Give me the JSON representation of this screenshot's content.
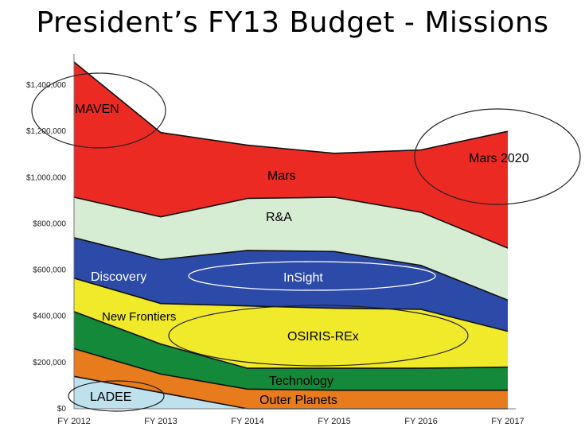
{
  "title": "President’s FY13 Budget - Missions",
  "chart_data": {
    "type": "area",
    "stacked": true,
    "categories": [
      "FY 2012",
      "FY 2013",
      "FY 2014",
      "FY 2015",
      "FY 2016",
      "FY 2017"
    ],
    "ylim": [
      0,
      1500000
    ],
    "yticks": [
      0,
      200000,
      400000,
      600000,
      800000,
      1000000,
      1200000,
      1400000
    ],
    "ytick_labels": [
      "$0",
      "$200,000",
      "$400,000",
      "$600,000",
      "$800,000",
      "$1,000,000",
      "$1,200,000",
      "$1,400,000"
    ],
    "series": [
      {
        "name": "LADEE",
        "color": "#bfe1ee",
        "values": [
          140000,
          70000,
          0,
          0,
          0,
          0
        ]
      },
      {
        "name": "Outer Planets",
        "color": "#e87b1c",
        "values": [
          120000,
          80000,
          85000,
          80000,
          80000,
          80000
        ]
      },
      {
        "name": "Technology",
        "color": "#14893a",
        "values": [
          160000,
          130000,
          90000,
          95000,
          95000,
          100000
        ]
      },
      {
        "name": "New Frontiers",
        "color": "#f0ea2a",
        "values": [
          145000,
          175000,
          270000,
          260000,
          255000,
          155000
        ]
      },
      {
        "name": "Discovery",
        "color": "#2c4aa8",
        "values": [
          175000,
          190000,
          240000,
          245000,
          190000,
          135000
        ]
      },
      {
        "name": "R&A",
        "color": "#d6ecd3",
        "values": [
          175000,
          185000,
          225000,
          235000,
          230000,
          225000
        ]
      },
      {
        "name": "Mars",
        "color": "#ec2a24",
        "values": [
          585000,
          365000,
          230000,
          190000,
          270000,
          505000
        ]
      }
    ],
    "annotations": [
      {
        "text": "MAVEN",
        "series": "Mars",
        "circled": true
      },
      {
        "text": "Mars 2020",
        "series": "Mars",
        "circled": true
      },
      {
        "text": "InSight",
        "series": "Discovery",
        "circled": true
      },
      {
        "text": "OSIRIS-REx",
        "series": "New Frontiers",
        "circled": true
      },
      {
        "text": "LADEE",
        "series": "LADEE",
        "circled": true
      }
    ],
    "labels": {
      "mars": "Mars",
      "ra": "R&A",
      "discovery": "Discovery",
      "new_frontiers": "New  Frontiers",
      "technology": "Technology",
      "outer_planets": "Outer Planets"
    }
  }
}
